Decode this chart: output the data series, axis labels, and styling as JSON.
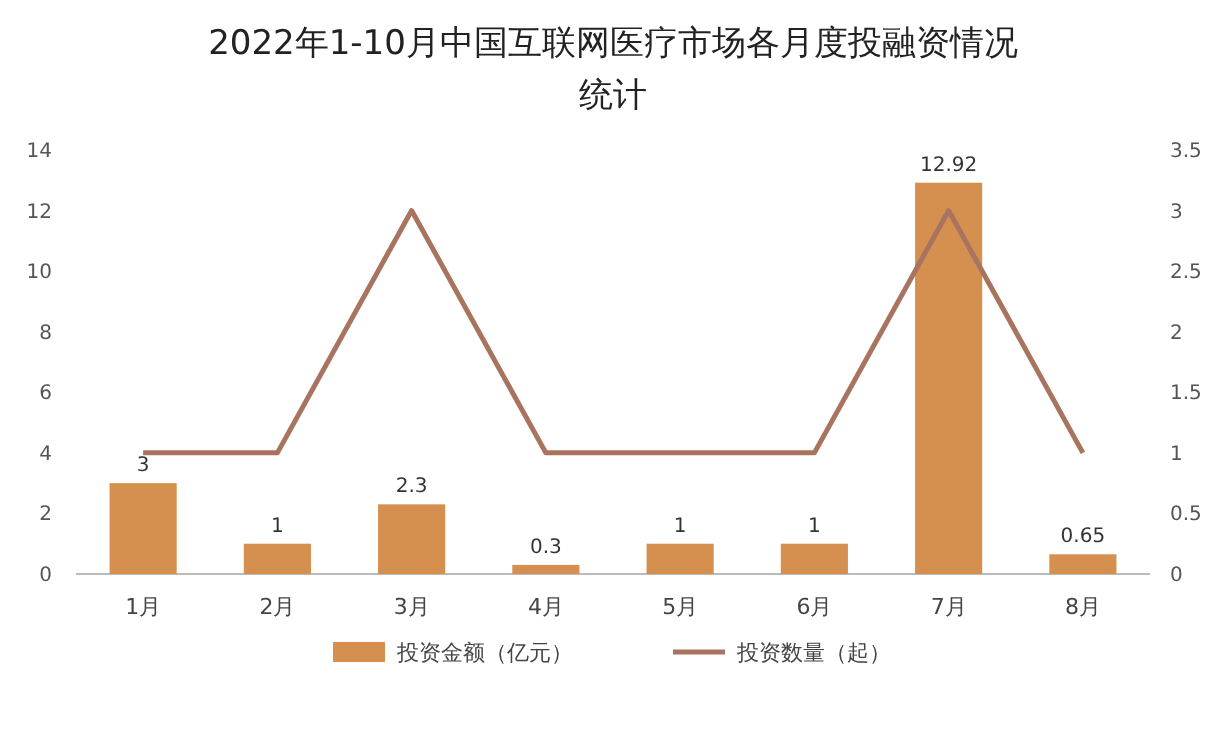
{
  "chart_data": {
    "type": "bar",
    "title": "2022年1-10月中国互联网医疗市场各月度投融资情况统计",
    "categories": [
      "1月",
      "2月",
      "3月",
      "4月",
      "5月",
      "6月",
      "7月",
      "8月"
    ],
    "series": [
      {
        "name": "投资金额（亿元）",
        "color": "#d58f4e",
        "values": [
          3,
          1,
          2.3,
          0.3,
          1,
          1,
          12.92,
          0.65
        ],
        "value_labels": [
          "3",
          "1",
          "2.3",
          "0.3",
          "1",
          "1",
          "12.92",
          "0.65"
        ]
      },
      {
        "name": "投资数量（起）",
        "type": "line",
        "axis": "y2",
        "color": "#a87460",
        "values": [
          1,
          1,
          3,
          1,
          1,
          1,
          3,
          1
        ]
      }
    ],
    "ylim": [
      0,
      14
    ],
    "yticks": [
      0,
      2,
      4,
      6,
      8,
      10,
      12,
      14
    ],
    "y2lim": [
      0,
      3.5
    ],
    "y2ticks": [
      0,
      0.5,
      1,
      1.5,
      2,
      2.5,
      3,
      3.5
    ],
    "legend": "bottom",
    "marker": "none",
    "line_style": "solid",
    "grid": false
  }
}
